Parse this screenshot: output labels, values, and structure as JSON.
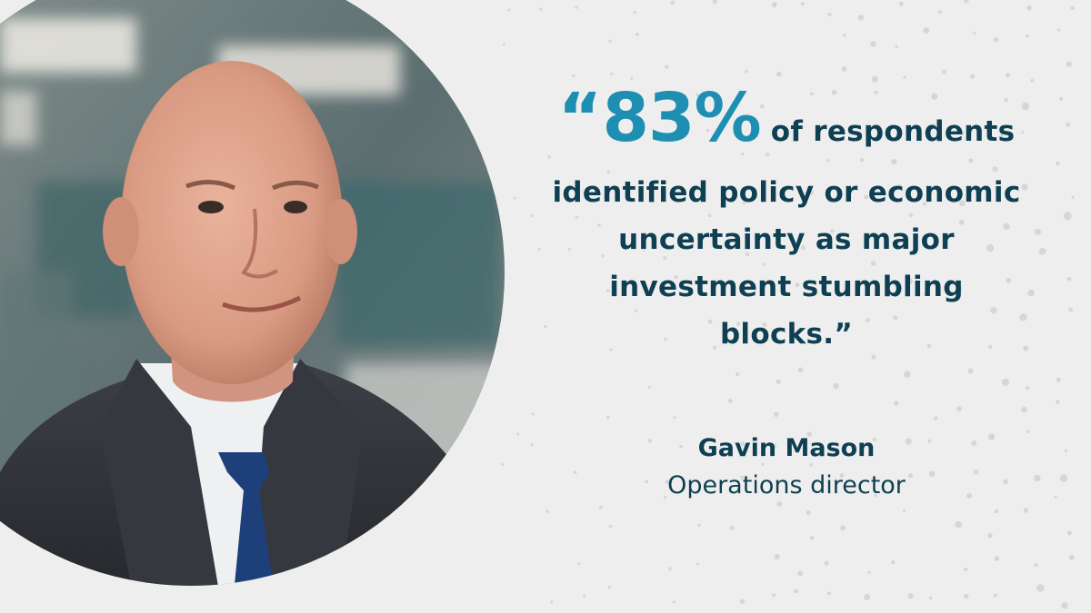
{
  "quote": {
    "open_mark": "“",
    "highlight": "83%",
    "line1_rest": "of respondents",
    "line2": "identified policy or economic",
    "line3": "uncertainty as major",
    "line4": "investment stumbling",
    "line5": "blocks.”"
  },
  "attribution": {
    "name": "Gavin Mason",
    "role": "Operations director"
  },
  "colors": {
    "accent": "#1e8fb2",
    "text": "#0e3f52",
    "background": "#eeeeee"
  }
}
